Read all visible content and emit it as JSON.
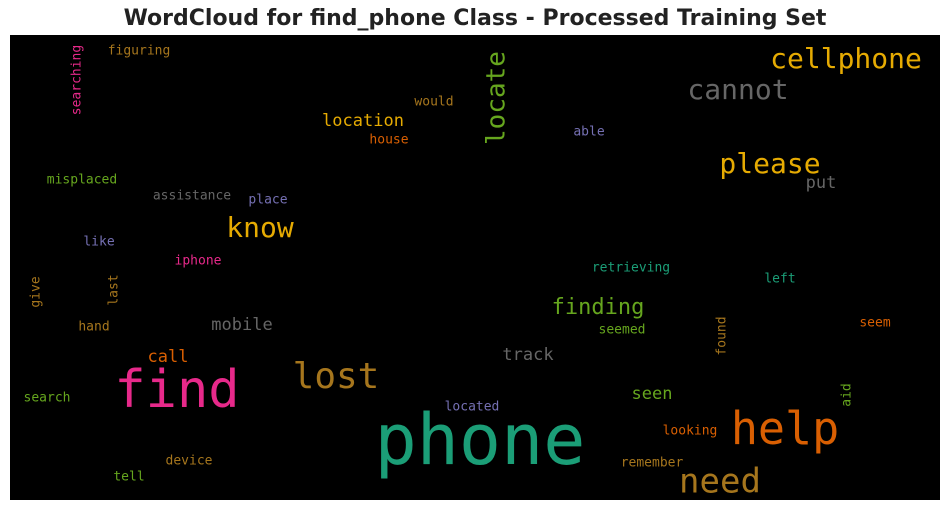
{
  "chart_data": {
    "type": "wordcloud",
    "title": "WordCloud for find_phone Class - Processed Training Set",
    "background": "#000000",
    "words": [
      {
        "text": "phone",
        "color": "#1b9e77"
      },
      {
        "text": "find",
        "color": "#e7298a"
      },
      {
        "text": "help",
        "color": "#d95f02"
      },
      {
        "text": "lost",
        "color": "#a6761d"
      },
      {
        "text": "need",
        "color": "#a6761d"
      },
      {
        "text": "cellphone",
        "color": "#e6ab02"
      },
      {
        "text": "cannot",
        "color": "#666666"
      },
      {
        "text": "please",
        "color": "#e6ab02"
      },
      {
        "text": "know",
        "color": "#e6ab02"
      },
      {
        "text": "locate",
        "color": "#66a61e"
      },
      {
        "text": "finding",
        "color": "#66a61e"
      },
      {
        "text": "location",
        "color": "#e6ab02"
      },
      {
        "text": "mobile",
        "color": "#666666"
      },
      {
        "text": "track",
        "color": "#666666"
      },
      {
        "text": "call",
        "color": "#d95f02"
      },
      {
        "text": "seen",
        "color": "#66a61e"
      },
      {
        "text": "put",
        "color": "#666666"
      },
      {
        "text": "figuring",
        "color": "#a6761d"
      },
      {
        "text": "searching",
        "color": "#e7298a"
      },
      {
        "text": "would",
        "color": "#a6761d"
      },
      {
        "text": "house",
        "color": "#d95f02"
      },
      {
        "text": "able",
        "color": "#7570b3"
      },
      {
        "text": "misplaced",
        "color": "#66a61e"
      },
      {
        "text": "assistance",
        "color": "#666666"
      },
      {
        "text": "place",
        "color": "#7570b3"
      },
      {
        "text": "like",
        "color": "#7570b3"
      },
      {
        "text": "iphone",
        "color": "#e7298a"
      },
      {
        "text": "give",
        "color": "#a6761d"
      },
      {
        "text": "last",
        "color": "#a6761d"
      },
      {
        "text": "retrieving",
        "color": "#1b9e77"
      },
      {
        "text": "left",
        "color": "#1b9e77"
      },
      {
        "text": "hand",
        "color": "#a6761d"
      },
      {
        "text": "seemed",
        "color": "#66a61e"
      },
      {
        "text": "found",
        "color": "#a6761d"
      },
      {
        "text": "seem",
        "color": "#d95f02"
      },
      {
        "text": "search",
        "color": "#66a61e"
      },
      {
        "text": "located",
        "color": "#7570b3"
      },
      {
        "text": "aid",
        "color": "#66a61e"
      },
      {
        "text": "looking",
        "color": "#d95f02"
      },
      {
        "text": "device",
        "color": "#a6761d"
      },
      {
        "text": "remember",
        "color": "#a6761d"
      },
      {
        "text": "tell",
        "color": "#66a61e"
      }
    ]
  }
}
